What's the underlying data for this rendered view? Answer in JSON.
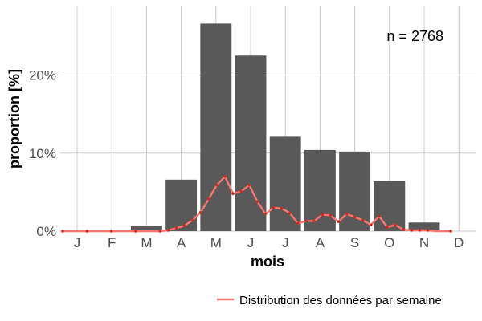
{
  "chart_data": {
    "type": "bar",
    "xlabel": "mois",
    "ylabel": "proportion [%]",
    "categories": [
      "J",
      "F",
      "M",
      "A",
      "M",
      "J",
      "J",
      "A",
      "S",
      "O",
      "N",
      "D"
    ],
    "values": [
      0,
      0,
      0.7,
      6.6,
      26.6,
      22.5,
      12.1,
      10.4,
      10.2,
      6.4,
      1.1,
      0
    ],
    "ylim": [
      0,
      28.8
    ],
    "yticks": [
      0,
      10,
      20
    ],
    "ytick_labels": [
      "0%",
      "10%",
      "20%"
    ],
    "grid": true,
    "bar_color": "#595959",
    "annotation": "n = 2768",
    "legend": {
      "position": "bottom-right"
    },
    "series": [
      {
        "name": "Distribution des données par semaine",
        "color": "#f8766d",
        "x": [
          0.0,
          0.23,
          0.46,
          0.69,
          0.92,
          1.15,
          1.38,
          1.61,
          1.84,
          2.07,
          2.3,
          2.53,
          2.76,
          2.99,
          3.22,
          3.45,
          3.68,
          3.91,
          4.14,
          4.37,
          4.6,
          4.83,
          5.06,
          5.29,
          5.52,
          5.75,
          5.98,
          6.21,
          6.44,
          6.67,
          6.9,
          7.13,
          7.36,
          7.59,
          7.82,
          8.05,
          8.28,
          8.51,
          8.74,
          8.97,
          9.2,
          9.43,
          9.66,
          9.89,
          10.12,
          10.35,
          10.58,
          10.81,
          11.0
        ],
        "y": [
          0,
          0,
          0,
          0,
          0,
          0,
          0,
          0,
          0,
          0,
          0,
          0,
          0,
          0.1,
          0.4,
          0.7,
          1.4,
          2.4,
          4.1,
          5.9,
          7.0,
          4.8,
          5.1,
          5.9,
          3.8,
          2.2,
          3.0,
          2.9,
          2.3,
          1.0,
          1.3,
          1.3,
          2.1,
          2.0,
          1.2,
          2.2,
          1.8,
          1.4,
          0.8,
          1.9,
          0.5,
          0.8,
          0.2,
          0.1,
          0.1,
          0.1,
          0,
          0,
          0
        ]
      }
    ]
  }
}
